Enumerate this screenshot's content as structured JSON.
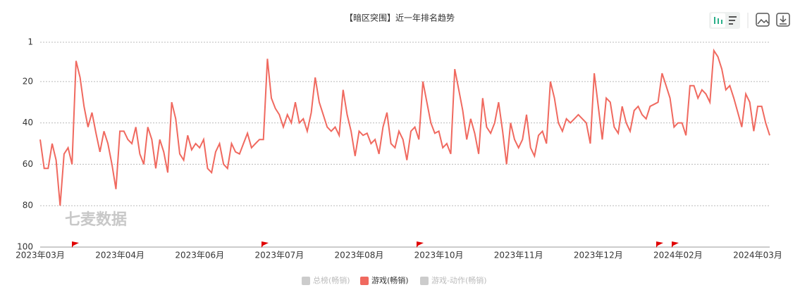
{
  "chart_data": {
    "type": "line",
    "title": "【暗区突围】近一年排名趋势",
    "watermark": "七麦数据",
    "categories": [
      "2023年03月",
      null,
      null,
      null,
      null,
      null,
      null,
      null,
      null,
      null,
      null,
      null,
      null,
      null,
      null,
      null,
      null,
      null,
      null,
      null,
      "2023年04月",
      null,
      null,
      null,
      null,
      null,
      null,
      null,
      null,
      null,
      null,
      null,
      null,
      null,
      null,
      null,
      null,
      null,
      null,
      null,
      "2023年06月",
      null,
      null,
      null,
      null,
      null,
      null,
      null,
      null,
      null,
      null,
      null,
      null,
      null,
      null,
      null,
      null,
      null,
      null,
      null,
      "2023年07月",
      null,
      null,
      null,
      null,
      null,
      null,
      null,
      null,
      null,
      null,
      null,
      null,
      null,
      null,
      null,
      null,
      null,
      null,
      null,
      "2023年08月",
      null,
      null,
      null,
      null,
      null,
      null,
      null,
      null,
      null,
      null,
      null,
      null,
      null,
      null,
      null,
      null,
      null,
      null,
      null,
      "2023年10月",
      null,
      null,
      null,
      null,
      null,
      null,
      null,
      null,
      null,
      null,
      null,
      null,
      null,
      null,
      null,
      null,
      null,
      null,
      null,
      "2023年11月",
      null,
      null,
      null,
      null,
      null,
      null,
      null,
      null,
      null,
      null,
      null,
      null,
      null,
      null,
      null,
      null,
      null,
      null,
      null,
      "2023年12月",
      null,
      null,
      null,
      null,
      null,
      null,
      null,
      null,
      null,
      null,
      null,
      null,
      null,
      null,
      null,
      null,
      null,
      null,
      null,
      "2024年02月",
      null,
      null,
      null,
      null,
      null,
      null,
      null,
      null,
      null,
      null,
      null,
      null,
      null,
      null,
      null,
      null,
      null,
      null,
      null,
      "2024年03月",
      null,
      null,
      null
    ],
    "series": [
      {
        "name": "游戏(畅销)",
        "color": "#f0695f",
        "values": [
          48,
          62,
          62,
          50,
          58,
          80,
          55,
          52,
          60,
          10,
          18,
          32,
          42,
          35,
          45,
          54,
          44,
          50,
          60,
          72,
          44,
          44,
          48,
          50,
          42,
          55,
          60,
          42,
          48,
          62,
          48,
          54,
          64,
          30,
          38,
          55,
          58,
          46,
          53,
          50,
          52,
          48,
          62,
          64,
          54,
          50,
          60,
          62,
          50,
          54,
          55,
          50,
          45,
          52,
          50,
          48,
          48,
          9,
          28,
          33,
          36,
          42,
          36,
          40,
          30,
          40,
          38,
          44,
          35,
          18,
          30,
          36,
          42,
          44,
          42,
          46,
          24,
          36,
          44,
          56,
          44,
          46,
          45,
          50,
          48,
          55,
          42,
          35,
          50,
          52,
          44,
          48,
          58,
          44,
          42,
          48,
          20,
          30,
          40,
          45,
          44,
          52,
          50,
          55,
          14,
          24,
          34,
          48,
          38,
          45,
          55,
          28,
          42,
          45,
          40,
          30,
          44,
          60,
          40,
          48,
          52,
          48,
          36,
          52,
          56,
          46,
          44,
          50,
          20,
          28,
          40,
          44,
          38,
          40,
          38,
          36,
          38,
          40,
          50,
          16,
          32,
          48,
          28,
          30,
          42,
          45,
          32,
          40,
          44,
          34,
          32,
          36,
          38,
          32,
          31,
          30,
          16,
          22,
          28,
          42,
          40,
          40,
          46,
          22,
          22,
          28,
          24,
          26,
          30,
          5,
          8,
          14,
          24,
          22,
          28,
          35,
          42,
          26,
          30,
          44,
          32,
          32,
          40,
          46
        ]
      }
    ],
    "legend": [
      {
        "name": "总榜(畅销)",
        "color": "#cccccc"
      },
      {
        "name": "游戏(畅销)",
        "color": "#f0695f"
      },
      {
        "name": "游戏-动作(畅销)",
        "color": "#cccccc"
      }
    ],
    "ylim": [
      1,
      100
    ],
    "yticks": [
      1,
      20,
      40,
      60,
      80,
      100
    ],
    "inverted": true,
    "grid": true
  }
}
